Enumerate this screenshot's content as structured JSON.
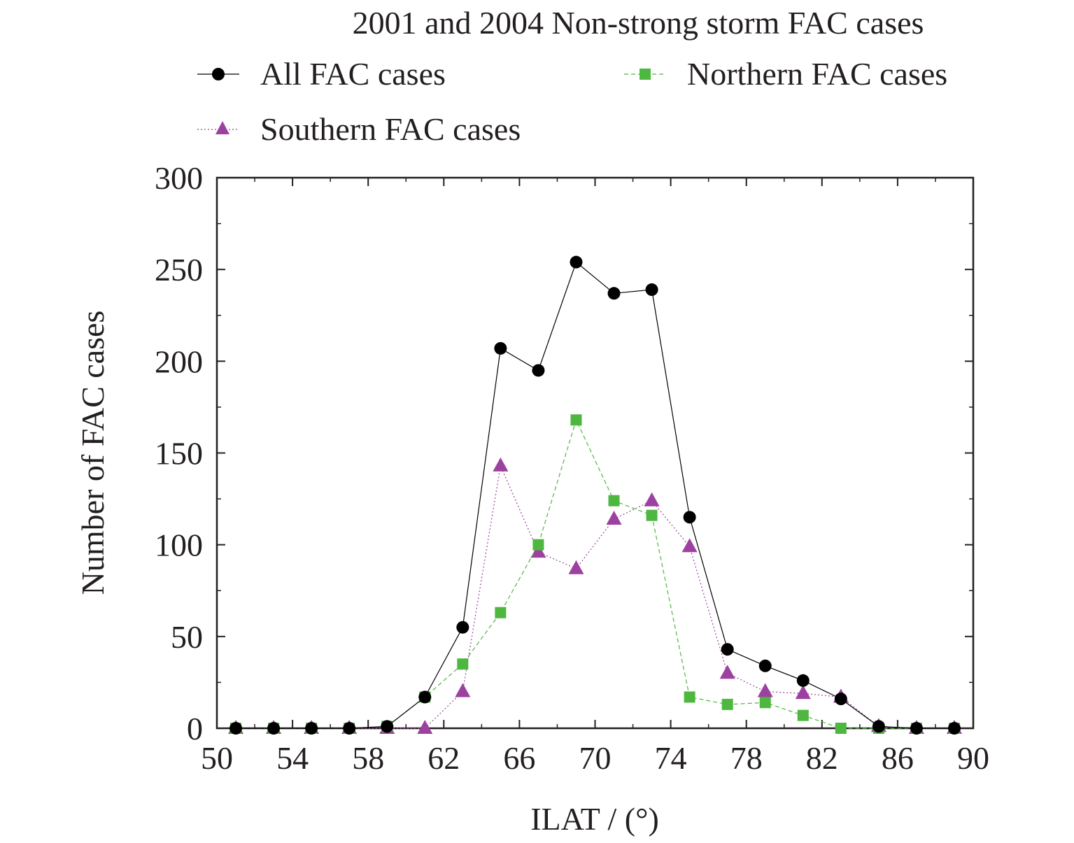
{
  "chart_data": {
    "type": "line",
    "title": "2001 and 2004 Non-strong storm FAC cases",
    "xlabel": "ILAT / (°)",
    "ylabel": "Number of FAC cases",
    "xlim": [
      50,
      90
    ],
    "ylim": [
      0,
      300
    ],
    "xticks": [
      50,
      54,
      58,
      62,
      66,
      70,
      74,
      78,
      82,
      86,
      90
    ],
    "yticks": [
      0,
      50,
      100,
      150,
      200,
      250,
      300
    ],
    "grid": false,
    "legend_position": "top",
    "x": [
      51,
      53,
      55,
      57,
      59,
      61,
      63,
      65,
      67,
      69,
      71,
      73,
      75,
      77,
      79,
      81,
      83,
      85,
      87,
      89
    ],
    "series": [
      {
        "name": "All FAC cases",
        "key": "all",
        "marker": "circle",
        "line_style": "solid",
        "color": "#000000",
        "values": [
          0,
          0,
          0,
          0,
          1,
          17,
          55,
          207,
          195,
          254,
          237,
          239,
          115,
          43,
          34,
          26,
          16,
          1,
          0,
          0
        ]
      },
      {
        "name": "Northern FAC cases",
        "key": "northern",
        "marker": "square",
        "line_style": "dashed",
        "color": "#4eb73f",
        "values": [
          0,
          0,
          0,
          0,
          1,
          17,
          35,
          63,
          100,
          168,
          124,
          116,
          17,
          13,
          14,
          7,
          0,
          0,
          0,
          0
        ]
      },
      {
        "name": "Southern FAC cases",
        "key": "southern",
        "marker": "triangle",
        "line_style": "dotted",
        "color": "#9d41a0",
        "values": [
          0,
          0,
          0,
          0,
          0,
          0,
          20,
          143,
          96,
          87,
          114,
          124,
          99,
          30,
          20,
          19,
          17,
          1,
          0,
          0
        ]
      }
    ]
  }
}
